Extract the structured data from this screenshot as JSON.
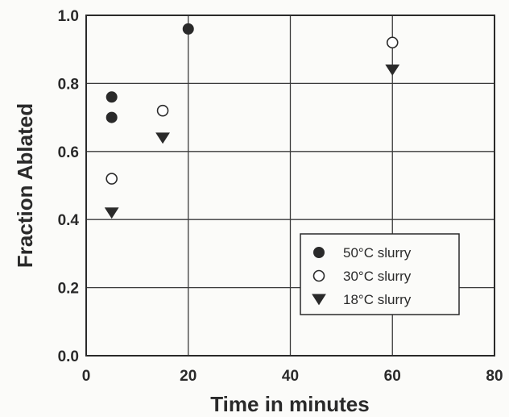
{
  "chart_data": {
    "type": "scatter",
    "xlabel": "Time in minutes",
    "ylabel": "Fraction Ablated",
    "xlim": [
      0,
      80
    ],
    "ylim": [
      0.0,
      1.0
    ],
    "x_ticks": [
      "0",
      "20",
      "40",
      "60",
      "80"
    ],
    "y_ticks": [
      "0.0",
      "0.2",
      "0.4",
      "0.6",
      "0.8",
      "1.0"
    ],
    "grid": true,
    "legend_position": "lower-right",
    "series": [
      {
        "name": "50°C slurry",
        "marker": "filled-circle",
        "color": "#2a2a2a",
        "points": [
          {
            "x": 5,
            "y": 0.76
          },
          {
            "x": 5,
            "y": 0.7
          },
          {
            "x": 20,
            "y": 0.96
          }
        ]
      },
      {
        "name": "30°C slurry",
        "marker": "open-circle",
        "color": "#2a2a2a",
        "points": [
          {
            "x": 5,
            "y": 0.52
          },
          {
            "x": 15,
            "y": 0.72
          },
          {
            "x": 60,
            "y": 0.92
          }
        ]
      },
      {
        "name": "18°C slurry",
        "marker": "filled-triangle-down",
        "color": "#2a2a2a",
        "points": [
          {
            "x": 5,
            "y": 0.42
          },
          {
            "x": 15,
            "y": 0.64
          },
          {
            "x": 60,
            "y": 0.84
          }
        ]
      }
    ]
  }
}
